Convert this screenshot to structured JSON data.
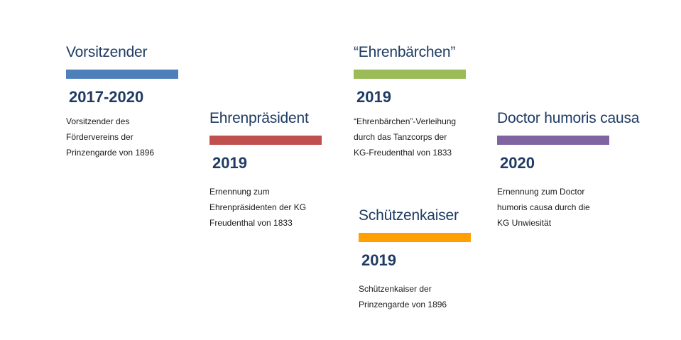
{
  "items": [
    {
      "title": "Vorsitzender",
      "year": "2017-2020",
      "description": "Vorsitzender des\nFördervereins der\nPrinzengarde von 1896",
      "color": "#4e7fba"
    },
    {
      "title": "Ehrenpräsident",
      "year": "2019",
      "description": "Ernennung zum\nEhrenpräsidenten der KG\nFreudenthal von 1833",
      "color": "#c0504d"
    },
    {
      "title": "“Ehrenbärchen”",
      "year": "2019",
      "description": "“Ehrenbärchen”-Verleihung\ndurch das Tanzcorps der\nKG-Freudenthal von 1833",
      "color": "#9bbb59"
    },
    {
      "title": "Schützenkaiser",
      "year": "2019",
      "description": "Schützenkaiser der\nPrinzengarde von 1896",
      "color": "#ff9f00"
    },
    {
      "title": "Doctor humoris causa",
      "year": "2020",
      "description": "Ernennung zum Doctor\nhumoris causa durch die\nKG Unwiesität",
      "color": "#8064a2"
    }
  ]
}
